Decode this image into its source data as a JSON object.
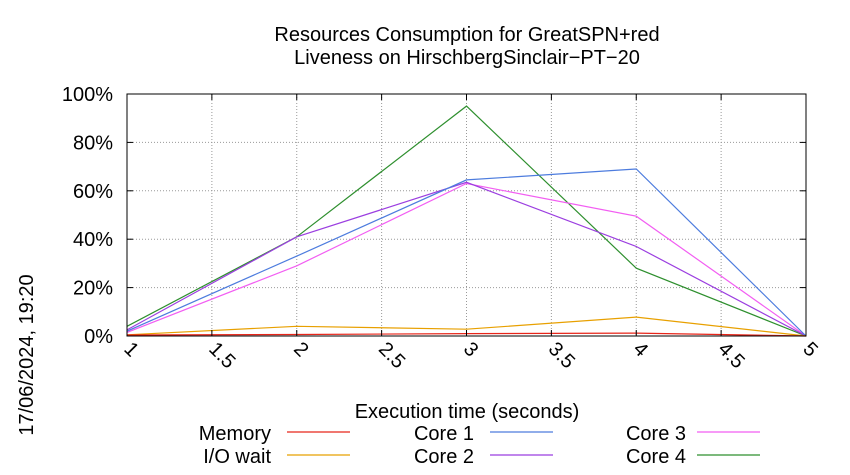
{
  "chart_data": {
    "type": "line",
    "title": "Resources Consumption for GreatSPN+red",
    "subtitle": "Liveness on HirschbergSinclair−PT−20",
    "xlabel": "Execution time (seconds)",
    "ylabel": "",
    "xlim": [
      1,
      5
    ],
    "ylim": [
      0,
      100
    ],
    "x_ticks": [
      "1",
      "1.5",
      "2",
      "2.5",
      "3",
      "3.5",
      "4",
      "4.5",
      "5"
    ],
    "y_ticks": [
      "0%",
      "20%",
      "40%",
      "60%",
      "80%",
      "100%"
    ],
    "grid": true,
    "legend_position": "bottom",
    "timestamp": "17/06/2024, 19:20",
    "series": [
      {
        "name": "Memory",
        "color": "#e8261a",
        "x": [
          1,
          2,
          3,
          4,
          5
        ],
        "y": [
          0.4,
          0.6,
          1.0,
          1.2,
          0
        ]
      },
      {
        "name": "I/O wait",
        "color": "#e8a000",
        "x": [
          1,
          2,
          3,
          4,
          5
        ],
        "y": [
          0.5,
          4.0,
          2.8,
          7.8,
          0
        ]
      },
      {
        "name": "Core 1",
        "color": "#4d7cde",
        "x": [
          1,
          2,
          3,
          4,
          5
        ],
        "y": [
          2.0,
          33.0,
          64.5,
          69.0,
          0
        ]
      },
      {
        "name": "Core 2",
        "color": "#9b3ee0",
        "x": [
          1,
          2,
          3,
          4,
          5
        ],
        "y": [
          2.5,
          41.0,
          63.5,
          37.0,
          0
        ]
      },
      {
        "name": "Core 3",
        "color": "#f25ef2",
        "x": [
          1,
          2,
          3,
          4,
          5
        ],
        "y": [
          1.5,
          29.0,
          63.0,
          49.5,
          0
        ]
      },
      {
        "name": "Core 4",
        "color": "#2e8f2e",
        "x": [
          1,
          2,
          3,
          4,
          5
        ],
        "y": [
          4.0,
          41.0,
          95.0,
          28.0,
          0
        ]
      }
    ]
  }
}
